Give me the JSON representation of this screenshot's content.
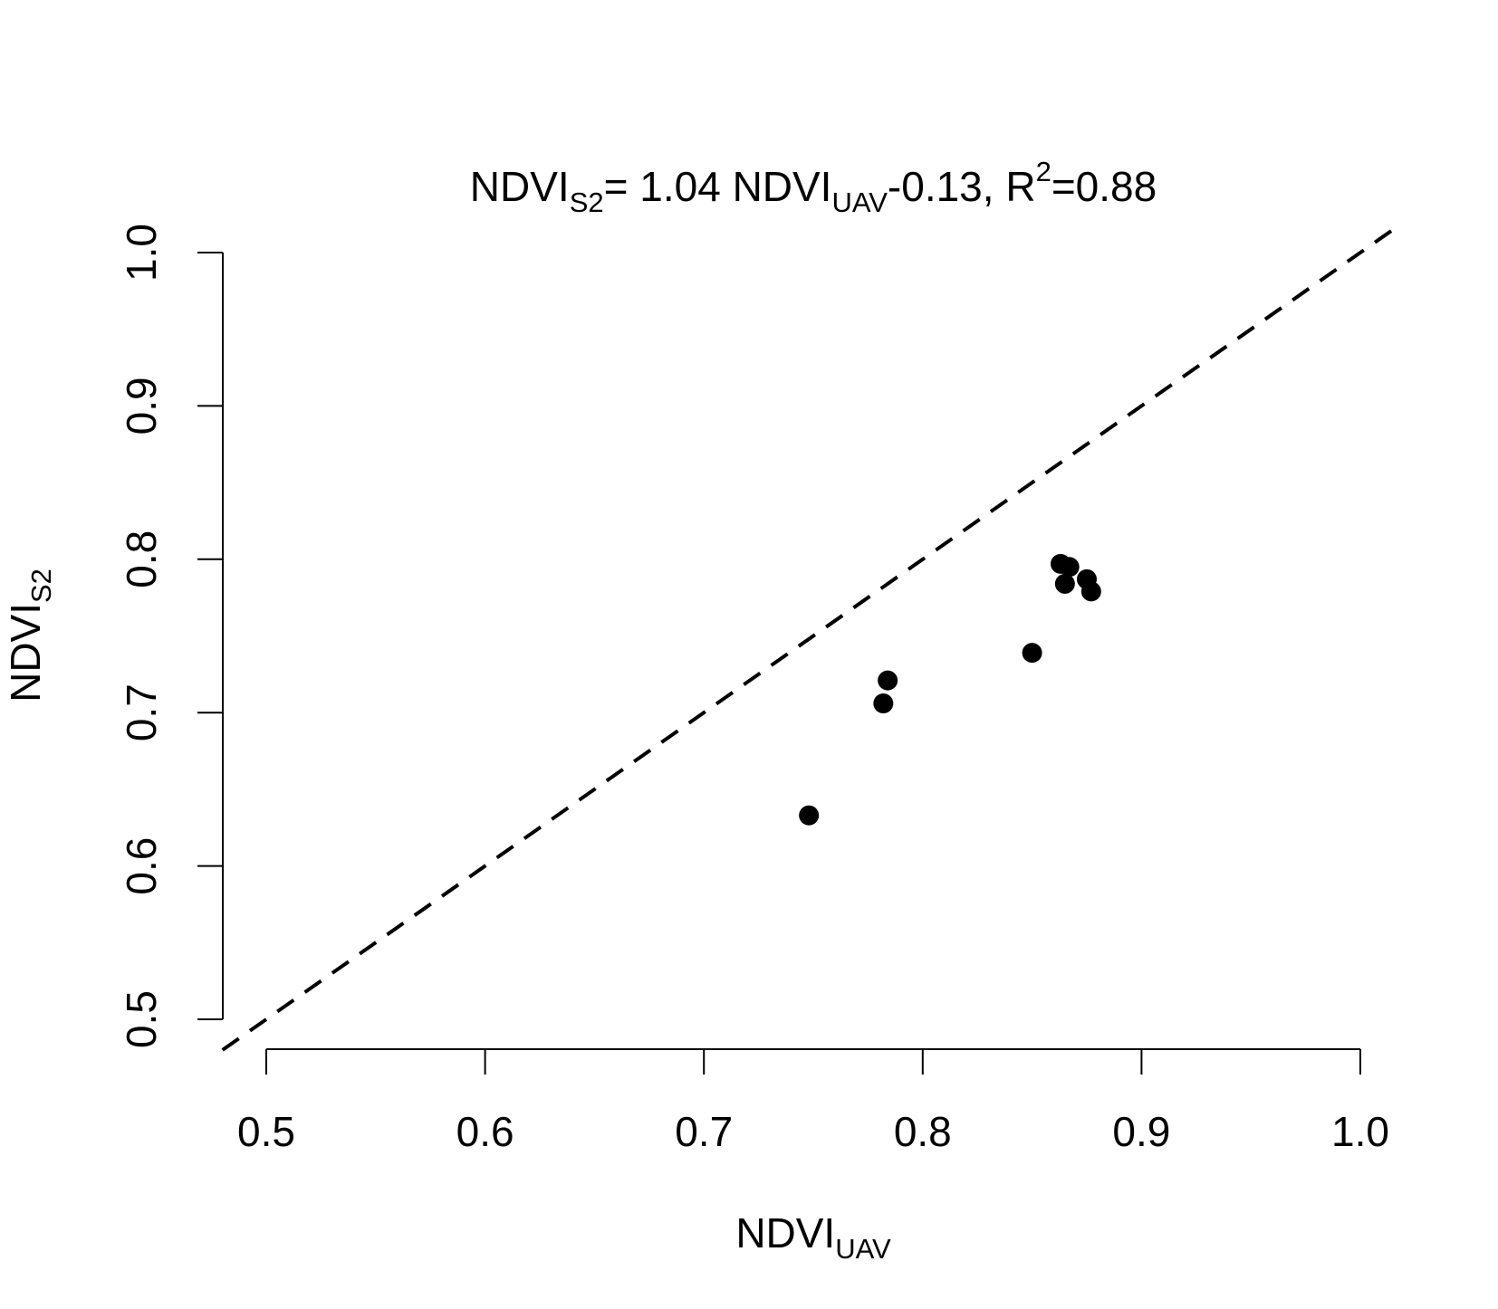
{
  "chart_data": {
    "type": "scatter",
    "title": {
      "parts": [
        {
          "text": "NDVI",
          "style": "normal"
        },
        {
          "text": "S2",
          "style": "sub"
        },
        {
          "text": "= 1.04 NDVI",
          "style": "normal"
        },
        {
          "text": "UAV",
          "style": "sub"
        },
        {
          "text": "-0.13, R",
          "style": "normal"
        },
        {
          "text": "2",
          "style": "sup"
        },
        {
          "text": "=0.88",
          "style": "normal"
        }
      ]
    },
    "xlabel": {
      "main": "NDVI",
      "sub": "UAV"
    },
    "ylabel": {
      "main": "NDVI",
      "sub": "S2"
    },
    "xlim": [
      0.48,
      1.02
    ],
    "ylim": [
      0.48,
      1.02
    ],
    "x_ticks": [
      "0.5",
      "0.6",
      "0.7",
      "0.8",
      "0.9",
      "1.0"
    ],
    "y_ticks": [
      "0.5",
      "0.6",
      "0.7",
      "0.8",
      "0.9",
      "1.0"
    ],
    "grid": false,
    "reference_line": {
      "slope": 1,
      "intercept": 0,
      "style": "dashed"
    },
    "series": [
      {
        "points": [
          {
            "x": 0.748,
            "y": 0.633
          },
          {
            "x": 0.782,
            "y": 0.706
          },
          {
            "x": 0.784,
            "y": 0.721
          },
          {
            "x": 0.85,
            "y": 0.739
          },
          {
            "x": 0.863,
            "y": 0.797
          },
          {
            "x": 0.867,
            "y": 0.795
          },
          {
            "x": 0.865,
            "y": 0.784
          },
          {
            "x": 0.875,
            "y": 0.787
          },
          {
            "x": 0.877,
            "y": 0.779
          }
        ]
      }
    ],
    "colors": {
      "points": "#000000",
      "axes": "#000000",
      "reference_line": "#000000"
    }
  }
}
